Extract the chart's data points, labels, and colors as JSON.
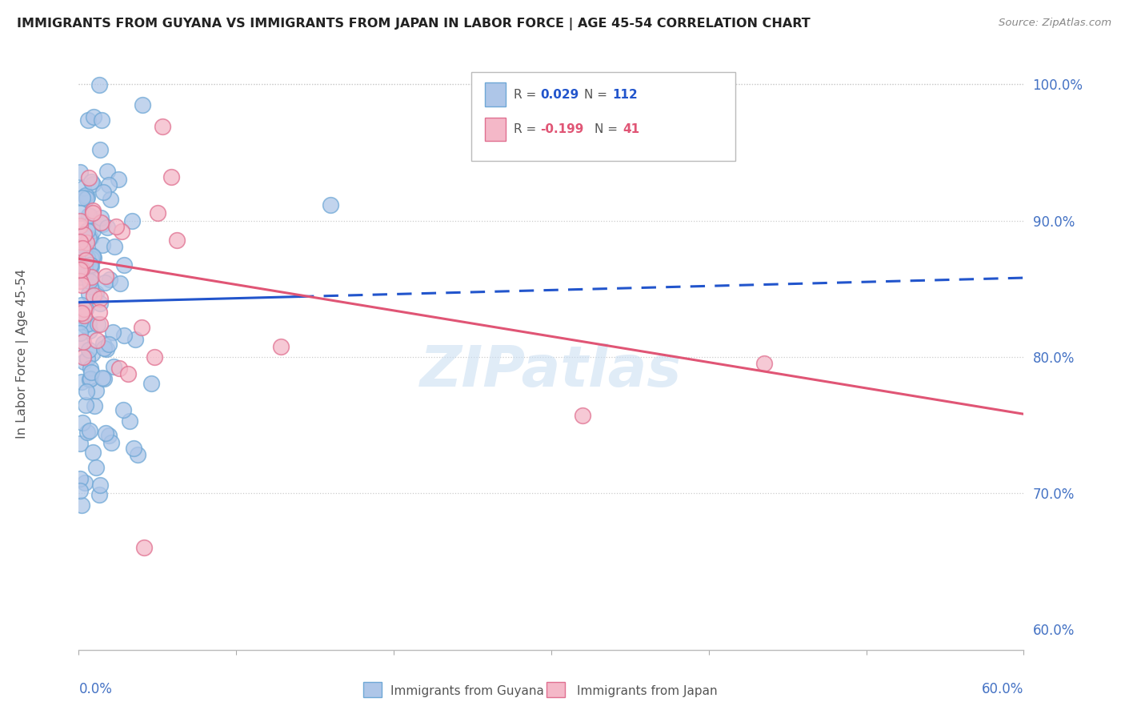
{
  "title": "IMMIGRANTS FROM GUYANA VS IMMIGRANTS FROM JAPAN IN LABOR FORCE | AGE 45-54 CORRELATION CHART",
  "source": "Source: ZipAtlas.com",
  "ylabel": "In Labor Force | Age 45-54",
  "y_tick_labels": [
    "60.0%",
    "70.0%",
    "80.0%",
    "90.0%",
    "100.0%"
  ],
  "y_tick_values": [
    0.6,
    0.7,
    0.8,
    0.9,
    1.0
  ],
  "x_lim": [
    0.0,
    0.6
  ],
  "y_lim": [
    0.585,
    1.02
  ],
  "guyana_scatter_color": "#aec6e8",
  "guyana_edge_color": "#6fa8d6",
  "japan_scatter_color": "#f4b8c8",
  "japan_edge_color": "#e07090",
  "guyana_trend_color": "#2255cc",
  "japan_trend_color": "#e05575",
  "background_color": "#ffffff",
  "watermark": "ZIPatlas",
  "tick_color": "#4472c4",
  "title_color": "#222222",
  "source_color": "#888888",
  "legend_r1": "0.029",
  "legend_n1": "112",
  "legend_r2": "-0.199",
  "legend_n2": "41",
  "legend_label1": "Immigrants from Guyana",
  "legend_label2": "Immigrants from Japan",
  "guyana_trend_x0": 0.0,
  "guyana_trend_y0": 0.84,
  "guyana_trend_x1": 0.6,
  "guyana_trend_y1": 0.858,
  "japan_trend_x0": 0.0,
  "japan_trend_y0": 0.872,
  "japan_trend_x1": 0.6,
  "japan_trend_y1": 0.758
}
